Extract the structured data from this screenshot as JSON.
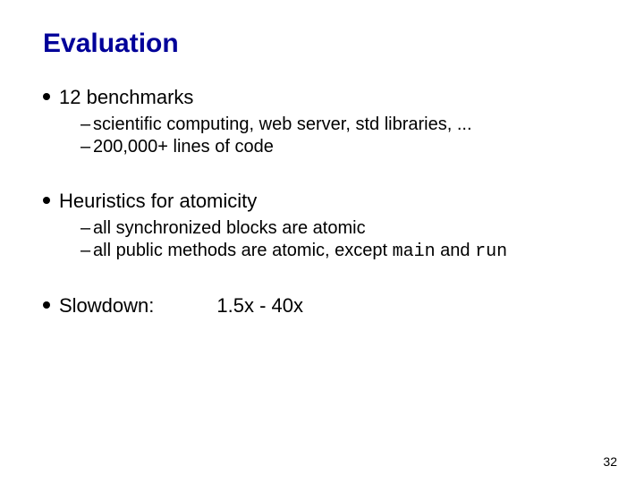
{
  "title": "Evaluation",
  "bullets": [
    {
      "text": "12 benchmarks",
      "subs": [
        "scientific computing, web server, std libraries, ...",
        "200,000+ lines of code"
      ]
    },
    {
      "text": "Heuristics for atomicity",
      "subs": [
        "all synchronized blocks are atomic",
        "all public methods are atomic, except <mono>main</mono> and <mono>run</mono>"
      ]
    }
  ],
  "slowdown": {
    "label": "Slowdown:",
    "value": "1.5x - 40x"
  },
  "page_number": "32",
  "colors": {
    "title": "#000099",
    "text": "#000000",
    "background": "#ffffff"
  },
  "fonts": {
    "body": "Comic Sans MS",
    "mono": "Courier New",
    "pagenum": "Arial"
  }
}
